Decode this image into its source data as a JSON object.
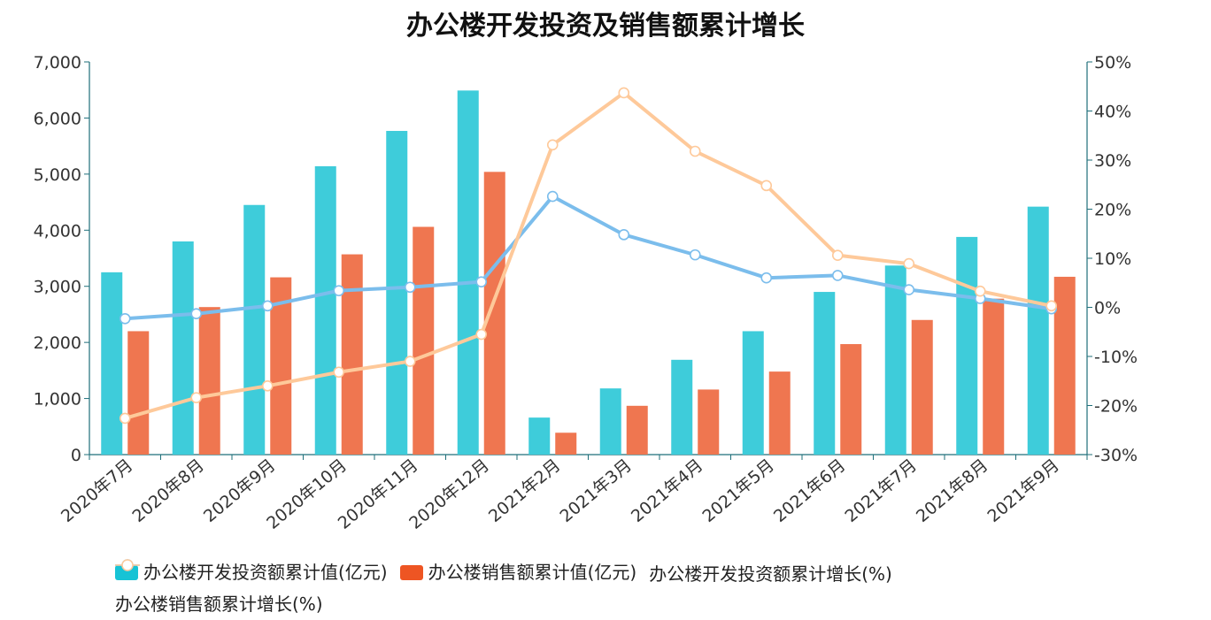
{
  "chart_data": {
    "type": "bar",
    "title": "办公楼开发投资及销售额累计增长",
    "categories": [
      "2020年7月",
      "2020年8月",
      "2020年9月",
      "2020年10月",
      "2020年11月",
      "2020年12月",
      "2021年2月",
      "2021年3月",
      "2021年4月",
      "2021年5月",
      "2021年6月",
      "2021年7月",
      "2021年8月",
      "2021年9月"
    ],
    "series": [
      {
        "name": "办公楼开发投资额累计值(亿元)",
        "kind": "bar",
        "axis": "left",
        "color": "#3ECCDA",
        "values": [
          3250,
          3800,
          4450,
          5140,
          5770,
          6490,
          660,
          1180,
          1690,
          2200,
          2900,
          3370,
          3880,
          4420
        ]
      },
      {
        "name": "办公楼销售额累计值(亿元)",
        "kind": "bar",
        "axis": "left",
        "color": "#EF7650",
        "values": [
          2200,
          2630,
          3160,
          3570,
          4060,
          5040,
          390,
          870,
          1160,
          1480,
          1970,
          2400,
          2780,
          3170
        ]
      },
      {
        "name": "办公楼开发投资额累计增长(%)",
        "kind": "line",
        "axis": "right",
        "color": "#7BBDEC",
        "values": [
          -2.3,
          -1.3,
          0.3,
          3.4,
          4.1,
          5.2,
          22.6,
          14.8,
          10.7,
          6.0,
          6.5,
          3.6,
          1.8,
          -0.3
        ]
      },
      {
        "name": "办公楼销售额累计增长(%)",
        "kind": "line",
        "axis": "right",
        "color": "#FEC99A",
        "values": [
          -22.6,
          -18.4,
          -16.0,
          -13.2,
          -11.0,
          -5.5,
          33.1,
          43.7,
          31.8,
          24.8,
          10.6,
          8.9,
          3.3,
          0.3
        ]
      }
    ],
    "y_left": {
      "min": 0,
      "max": 7000,
      "ticks": [
        0,
        1000,
        2000,
        3000,
        4000,
        5000,
        6000,
        7000
      ],
      "tick_labels": [
        "0",
        "1,000",
        "2,000",
        "3,000",
        "4,000",
        "5,000",
        "6,000",
        "7,000"
      ]
    },
    "y_right": {
      "min": -30,
      "max": 50,
      "ticks": [
        -30,
        -20,
        -10,
        0,
        10,
        20,
        30,
        40,
        50
      ],
      "tick_labels": [
        "-30%",
        "-20%",
        "-10%",
        "0%",
        "10%",
        "20%",
        "30%",
        "40%",
        "50%"
      ]
    },
    "legend_position": "bottom",
    "grid": false
  }
}
